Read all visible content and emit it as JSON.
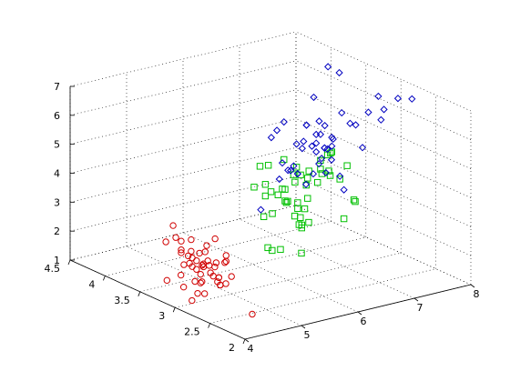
{
  "chart_data": {
    "type": "scatter",
    "projection": "3d",
    "grid": true,
    "title": "",
    "xlabel": "",
    "ylabel": "",
    "zlabel": "",
    "xlim": [
      4,
      8
    ],
    "ylim": [
      2,
      4.5
    ],
    "zlim": [
      1,
      7
    ],
    "x_ticks": [
      "4",
      "5",
      "6",
      "7",
      "8"
    ],
    "y_ticks": [
      "2",
      "2.5",
      "3",
      "3.5",
      "4",
      "4.5"
    ],
    "z_ticks": [
      "1",
      "2",
      "3",
      "4",
      "5",
      "6",
      "7"
    ],
    "series": [
      {
        "color": "#d00000",
        "marker": "circle",
        "points": [
          [
            5.1,
            3.5,
            1.4
          ],
          [
            4.9,
            3.0,
            1.4
          ],
          [
            4.7,
            3.2,
            1.3
          ],
          [
            4.6,
            3.1,
            1.5
          ],
          [
            5.0,
            3.6,
            1.4
          ],
          [
            5.4,
            3.9,
            1.7
          ],
          [
            4.6,
            3.4,
            1.4
          ],
          [
            5.0,
            3.4,
            1.5
          ],
          [
            4.4,
            2.9,
            1.4
          ],
          [
            4.9,
            3.1,
            1.5
          ],
          [
            5.4,
            3.7,
            1.5
          ],
          [
            4.8,
            3.4,
            1.6
          ],
          [
            4.8,
            3.0,
            1.4
          ],
          [
            4.3,
            3.0,
            1.1
          ],
          [
            5.8,
            4.0,
            1.2
          ],
          [
            5.7,
            4.4,
            1.5
          ],
          [
            5.4,
            3.9,
            1.3
          ],
          [
            5.1,
            3.5,
            1.4
          ],
          [
            5.7,
            3.8,
            1.7
          ],
          [
            5.1,
            3.8,
            1.5
          ],
          [
            5.4,
            3.4,
            1.7
          ],
          [
            5.1,
            3.7,
            1.5
          ],
          [
            4.6,
            3.6,
            1.0
          ],
          [
            5.1,
            3.3,
            1.7
          ],
          [
            4.8,
            3.4,
            1.9
          ],
          [
            5.0,
            3.0,
            1.6
          ],
          [
            5.0,
            3.4,
            1.6
          ],
          [
            5.2,
            3.5,
            1.5
          ],
          [
            5.2,
            3.4,
            1.4
          ],
          [
            4.7,
            3.2,
            1.6
          ],
          [
            4.8,
            3.1,
            1.6
          ],
          [
            5.4,
            3.4,
            1.5
          ],
          [
            5.2,
            4.1,
            1.5
          ],
          [
            5.5,
            4.2,
            1.4
          ],
          [
            4.9,
            3.1,
            1.5
          ],
          [
            5.0,
            3.2,
            1.2
          ],
          [
            5.5,
            3.5,
            1.3
          ],
          [
            4.9,
            3.6,
            1.4
          ],
          [
            4.4,
            3.0,
            1.3
          ],
          [
            5.1,
            3.4,
            1.5
          ],
          [
            5.0,
            3.5,
            1.3
          ],
          [
            4.5,
            2.3,
            1.3
          ],
          [
            4.4,
            3.2,
            1.3
          ],
          [
            5.0,
            3.5,
            1.6
          ],
          [
            5.1,
            3.8,
            1.9
          ],
          [
            4.8,
            3.0,
            1.4
          ],
          [
            5.1,
            3.8,
            1.6
          ],
          [
            4.6,
            3.2,
            1.4
          ],
          [
            5.3,
            3.7,
            1.5
          ],
          [
            5.0,
            3.3,
            1.4
          ]
        ]
      },
      {
        "color": "#00c000",
        "marker": "square",
        "points": [
          [
            7.0,
            3.2,
            4.7
          ],
          [
            6.4,
            3.2,
            4.5
          ],
          [
            6.9,
            3.1,
            4.9
          ],
          [
            5.5,
            2.3,
            4.0
          ],
          [
            6.5,
            2.8,
            4.6
          ],
          [
            5.7,
            2.8,
            4.5
          ],
          [
            6.3,
            3.3,
            4.7
          ],
          [
            4.9,
            2.4,
            3.3
          ],
          [
            6.6,
            2.9,
            4.6
          ],
          [
            5.2,
            2.7,
            3.9
          ],
          [
            5.0,
            2.0,
            3.5
          ],
          [
            5.9,
            3.0,
            4.2
          ],
          [
            6.0,
            2.2,
            4.0
          ],
          [
            6.1,
            2.9,
            4.7
          ],
          [
            5.6,
            2.9,
            3.6
          ],
          [
            6.7,
            3.1,
            4.4
          ],
          [
            5.6,
            3.0,
            4.5
          ],
          [
            5.8,
            2.7,
            4.1
          ],
          [
            6.2,
            2.2,
            4.5
          ],
          [
            5.6,
            2.5,
            3.9
          ],
          [
            5.9,
            3.2,
            4.8
          ],
          [
            6.1,
            2.8,
            4.0
          ],
          [
            6.3,
            2.5,
            4.9
          ],
          [
            6.1,
            2.8,
            4.7
          ],
          [
            6.4,
            2.9,
            4.3
          ],
          [
            6.6,
            3.0,
            4.4
          ],
          [
            6.8,
            2.8,
            4.8
          ],
          [
            6.7,
            3.0,
            5.0
          ],
          [
            6.0,
            2.9,
            4.5
          ],
          [
            5.7,
            2.6,
            3.5
          ],
          [
            5.5,
            2.4,
            3.8
          ],
          [
            5.5,
            2.4,
            3.7
          ],
          [
            5.8,
            2.7,
            3.9
          ],
          [
            6.0,
            2.7,
            5.1
          ],
          [
            5.4,
            3.0,
            4.5
          ],
          [
            6.0,
            3.4,
            4.5
          ],
          [
            6.7,
            3.1,
            4.7
          ],
          [
            6.3,
            2.3,
            4.4
          ],
          [
            5.6,
            3.0,
            4.1
          ],
          [
            5.5,
            2.5,
            4.0
          ],
          [
            5.5,
            2.6,
            4.4
          ],
          [
            6.1,
            3.0,
            4.6
          ],
          [
            5.8,
            2.6,
            4.0
          ],
          [
            5.0,
            2.3,
            3.3
          ],
          [
            5.6,
            2.7,
            4.2
          ],
          [
            5.7,
            3.0,
            4.2
          ],
          [
            5.7,
            2.9,
            4.2
          ],
          [
            6.2,
            2.9,
            4.3
          ],
          [
            5.1,
            2.5,
            3.0
          ],
          [
            5.7,
            2.8,
            4.1
          ]
        ]
      },
      {
        "color": "#0000c0",
        "marker": "diamond",
        "points": [
          [
            6.3,
            3.3,
            6.0
          ],
          [
            5.8,
            2.7,
            5.1
          ],
          [
            7.1,
            3.0,
            5.9
          ],
          [
            6.3,
            2.9,
            5.6
          ],
          [
            6.5,
            3.0,
            5.8
          ],
          [
            7.6,
            3.0,
            6.6
          ],
          [
            4.9,
            2.5,
            4.5
          ],
          [
            7.3,
            2.9,
            6.3
          ],
          [
            6.7,
            2.5,
            5.8
          ],
          [
            7.2,
            3.6,
            6.1
          ],
          [
            6.5,
            3.2,
            5.1
          ],
          [
            6.4,
            2.7,
            5.3
          ],
          [
            6.8,
            3.0,
            5.5
          ],
          [
            5.7,
            2.5,
            5.0
          ],
          [
            5.8,
            2.8,
            5.1
          ],
          [
            6.4,
            3.2,
            5.3
          ],
          [
            6.5,
            3.0,
            5.5
          ],
          [
            7.7,
            3.8,
            6.7
          ],
          [
            7.7,
            2.6,
            6.9
          ],
          [
            6.0,
            2.2,
            5.0
          ],
          [
            6.9,
            3.2,
            5.7
          ],
          [
            5.6,
            2.8,
            4.9
          ],
          [
            7.7,
            2.8,
            6.7
          ],
          [
            6.3,
            2.7,
            4.9
          ],
          [
            6.7,
            3.3,
            5.7
          ],
          [
            7.2,
            3.2,
            6.0
          ],
          [
            6.2,
            2.8,
            4.8
          ],
          [
            6.1,
            3.0,
            4.9
          ],
          [
            6.4,
            2.8,
            5.6
          ],
          [
            7.2,
            3.0,
            5.8
          ],
          [
            7.4,
            2.8,
            6.1
          ],
          [
            7.9,
            3.8,
            6.4
          ],
          [
            6.4,
            2.8,
            5.6
          ],
          [
            6.3,
            2.8,
            5.1
          ],
          [
            6.1,
            2.6,
            5.6
          ],
          [
            7.7,
            3.0,
            6.1
          ],
          [
            6.3,
            3.4,
            5.6
          ],
          [
            6.4,
            3.1,
            5.5
          ],
          [
            6.0,
            3.0,
            4.8
          ],
          [
            6.9,
            3.1,
            5.4
          ],
          [
            6.7,
            3.1,
            5.6
          ],
          [
            6.9,
            3.1,
            5.1
          ],
          [
            5.8,
            2.7,
            5.1
          ],
          [
            6.8,
            3.2,
            5.9
          ],
          [
            6.7,
            3.3,
            5.7
          ],
          [
            6.7,
            3.0,
            5.2
          ],
          [
            6.3,
            2.5,
            5.0
          ],
          [
            6.5,
            3.0,
            5.2
          ],
          [
            6.2,
            3.4,
            5.4
          ],
          [
            5.9,
            3.0,
            5.1
          ]
        ]
      }
    ]
  }
}
